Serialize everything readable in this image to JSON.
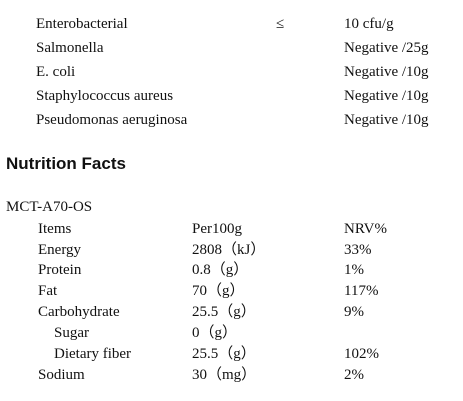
{
  "micro": [
    {
      "name": "Enterobacterial",
      "op": "≤",
      "value": "10 cfu/g"
    },
    {
      "name": "Salmonella",
      "op": "",
      "value": "Negative /25g"
    },
    {
      "name": "E. coli",
      "op": "",
      "value": "Negative /10g"
    },
    {
      "name": "Staphylococcus aureus",
      "op": "",
      "value": "Negative /10g"
    },
    {
      "name": "Pseudomonas aeruginosa",
      "op": "",
      "value": "Negative /10g"
    }
  ],
  "nutrition": {
    "heading": "Nutrition Facts",
    "product_code": "MCT-A70-OS",
    "headers": {
      "item": "Items",
      "amount": "Per100g",
      "nrv": "NRV%"
    },
    "rows": [
      {
        "item": "Energy",
        "amount": "2808（kJ）",
        "nrv": "33%",
        "sub": false
      },
      {
        "item": "Protein",
        "amount": "0.8（g）",
        "nrv": "1%",
        "sub": false
      },
      {
        "item": "Fat",
        "amount": "70（g）",
        "nrv": "117%",
        "sub": false
      },
      {
        "item": "Carbohydrate",
        "amount": "25.5（g）",
        "nrv": "9%",
        "sub": false
      },
      {
        "item": "Sugar",
        "amount": "0（g）",
        "nrv": "",
        "sub": true
      },
      {
        "item": "Dietary fiber",
        "amount": "25.5（g）",
        "nrv": "102%",
        "sub": true
      },
      {
        "item": "Sodium",
        "amount": "30（mg）",
        "nrv": "2%",
        "sub": false
      }
    ]
  }
}
